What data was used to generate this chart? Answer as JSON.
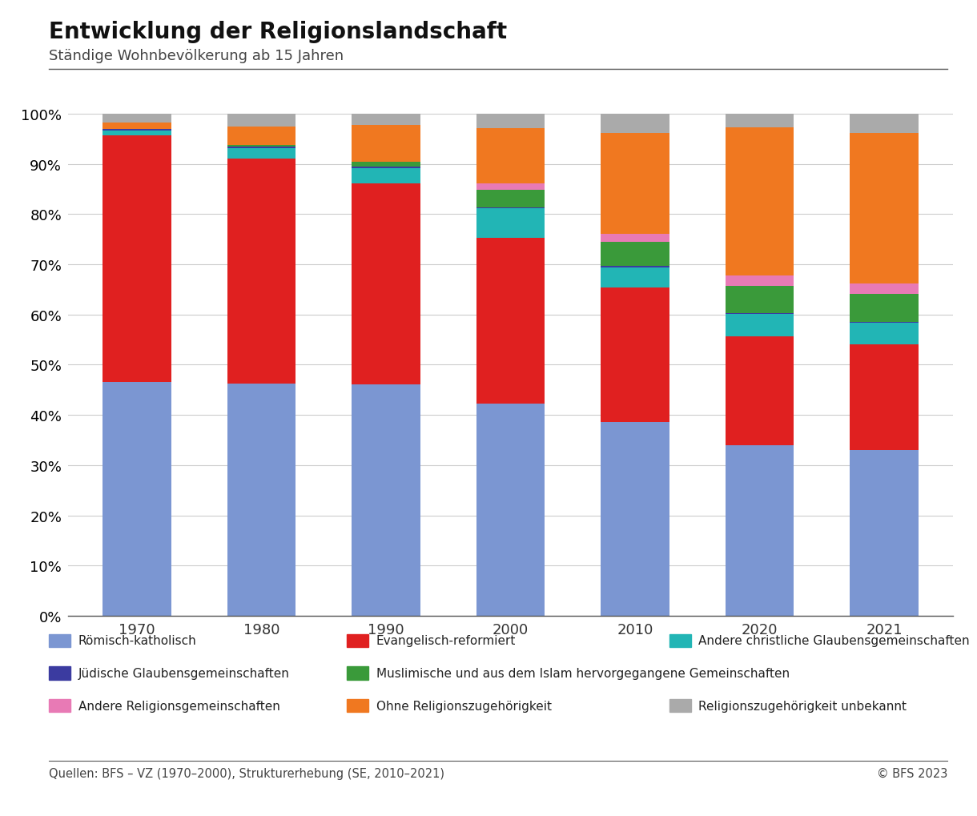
{
  "title": "Entwicklung der Religionslandschaft",
  "subtitle": "Ständige Wohnbevölkerung ab 15 Jahren",
  "years": [
    "1970",
    "1980",
    "1990",
    "2000",
    "2010",
    "2020",
    "2021"
  ],
  "categories": [
    "Römisch-katholisch",
    "Evangelisch-reformiert",
    "Andere christliche Glaubensgemeinschaften",
    "Jüdische Glaubensgemeinschaften",
    "Muslimische und aus dem Islam hervorgegangene Gemeinschaften",
    "Andere Religionsgemeinschaften",
    "Ohne Religionszugehörigkeit",
    "Religionszugehörigkeit unbekannt"
  ],
  "colors": [
    "#7b96d2",
    "#e02020",
    "#22b5b5",
    "#3b3ba0",
    "#3a9a3a",
    "#e87ab5",
    "#f07820",
    "#aaaaaa"
  ],
  "data": {
    "Römisch-katholisch": [
      46.6,
      46.2,
      46.1,
      42.3,
      38.6,
      33.9,
      33.0
    ],
    "Evangelisch-reformiert": [
      49.0,
      44.9,
      40.0,
      33.0,
      26.8,
      21.8,
      21.0
    ],
    "Andere christliche Glaubensgemeinschaften": [
      1.0,
      2.0,
      3.0,
      5.8,
      4.0,
      4.4,
      4.4
    ],
    "Jüdische Glaubensgemeinschaften": [
      0.3,
      0.3,
      0.3,
      0.2,
      0.2,
      0.2,
      0.2
    ],
    "Muslimische und aus dem Islam hervorgegangene Gemeinschaften": [
      0.0,
      0.3,
      1.0,
      3.5,
      4.9,
      5.4,
      5.5
    ],
    "Andere Religionsgemeinschaften": [
      0.0,
      0.0,
      0.0,
      1.3,
      1.5,
      2.1,
      2.1
    ],
    "Ohne Religionszugehörigkeit": [
      1.3,
      3.7,
      7.4,
      11.0,
      20.1,
      29.4,
      30.0
    ],
    "Religionszugehörigkeit unbekannt": [
      1.8,
      2.6,
      2.2,
      2.9,
      3.9,
      2.8,
      3.8
    ]
  },
  "footer_left": "Quellen: BFS – VZ (1970–2000), Strukturerhebung (SE, 2010–2021)",
  "footer_right": "© BFS 2023",
  "background_color": "#ffffff",
  "legend_layout": [
    [
      0,
      1,
      2
    ],
    [
      3,
      4,
      null
    ],
    [
      5,
      6,
      7
    ]
  ]
}
